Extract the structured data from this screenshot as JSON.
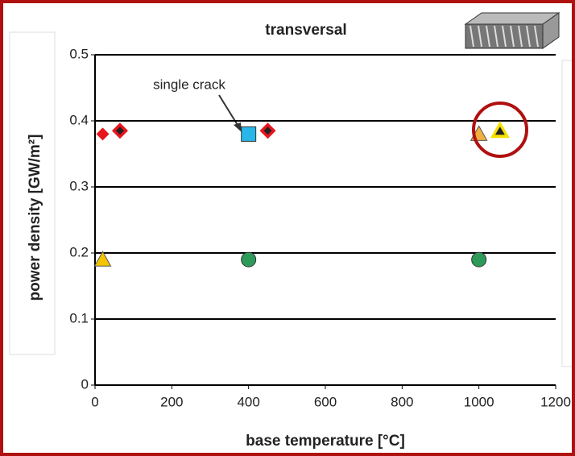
{
  "chart_data": {
    "type": "scatter",
    "title": "transversal",
    "x_label": "base temperature [°C]",
    "y_label": "power density [GW/m²]",
    "annotations": [
      "single crack"
    ],
    "xlim": [
      0,
      1200
    ],
    "xticks": [
      0,
      200,
      400,
      600,
      800,
      1000,
      1200
    ],
    "ylim": [
      0,
      0.5
    ],
    "yticks": [
      0,
      0.1,
      0.2,
      0.3,
      0.4,
      0.5
    ],
    "grid": true,
    "series": [
      {
        "color": "#e8141c",
        "marker": "diamond",
        "x": [
          20
        ],
        "values": [
          0.38
        ]
      },
      {
        "color": "#e8141c",
        "marker": "diamond-dot",
        "x": [
          65,
          450
        ],
        "values": [
          0.385,
          0.385
        ]
      },
      {
        "color": "#29b6e8",
        "marker": "square",
        "x": [
          400
        ],
        "values": [
          0.38
        ]
      },
      {
        "color": "#f5c400",
        "marker": "triangle",
        "x": [
          20
        ],
        "values": [
          0.19
        ]
      },
      {
        "color": "#2e9a5a",
        "marker": "circle",
        "x": [
          400,
          1000
        ],
        "values": [
          0.19,
          0.19
        ]
      },
      {
        "color": "#f0b040",
        "marker": "triangle",
        "x": [
          1000
        ],
        "values": [
          0.38
        ]
      },
      {
        "color": "#f5e000",
        "marker": "triangle-dot",
        "x": [
          1055
        ],
        "values": [
          0.385
        ]
      }
    ]
  }
}
